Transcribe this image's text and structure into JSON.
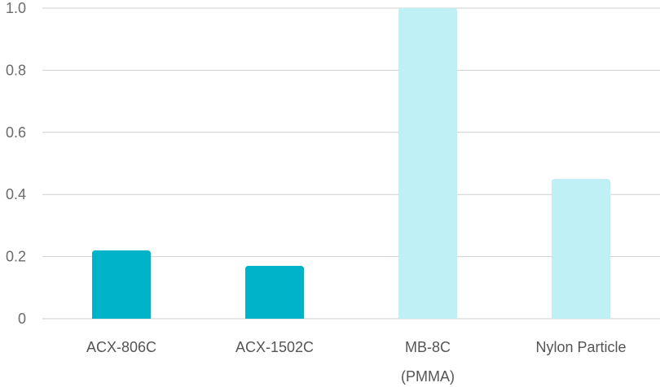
{
  "chart_data": {
    "type": "bar",
    "categories": [
      "ACX-806C",
      "ACX-1502C",
      "MB-8C (PMMA)",
      "Nylon Particle"
    ],
    "category_lines": [
      [
        "ACX-806C"
      ],
      [
        "ACX-1502C"
      ],
      [
        "MB-8C",
        "(PMMA)"
      ],
      [
        "Nylon Particle"
      ]
    ],
    "values": [
      0.22,
      0.17,
      1.0,
      0.45
    ],
    "bar_colors": [
      "#00b3c8",
      "#00b3c8",
      "#bff0f6",
      "#bff0f6"
    ],
    "ylim": [
      0,
      1.0
    ],
    "yticks": [
      0,
      0.2,
      0.4,
      0.6,
      0.8,
      1.0
    ],
    "ytick_labels": [
      "0",
      "0.2",
      "0.4",
      "0.6",
      "0.8",
      "1.0"
    ],
    "grid": true,
    "title": "",
    "xlabel": "",
    "ylabel": ""
  }
}
